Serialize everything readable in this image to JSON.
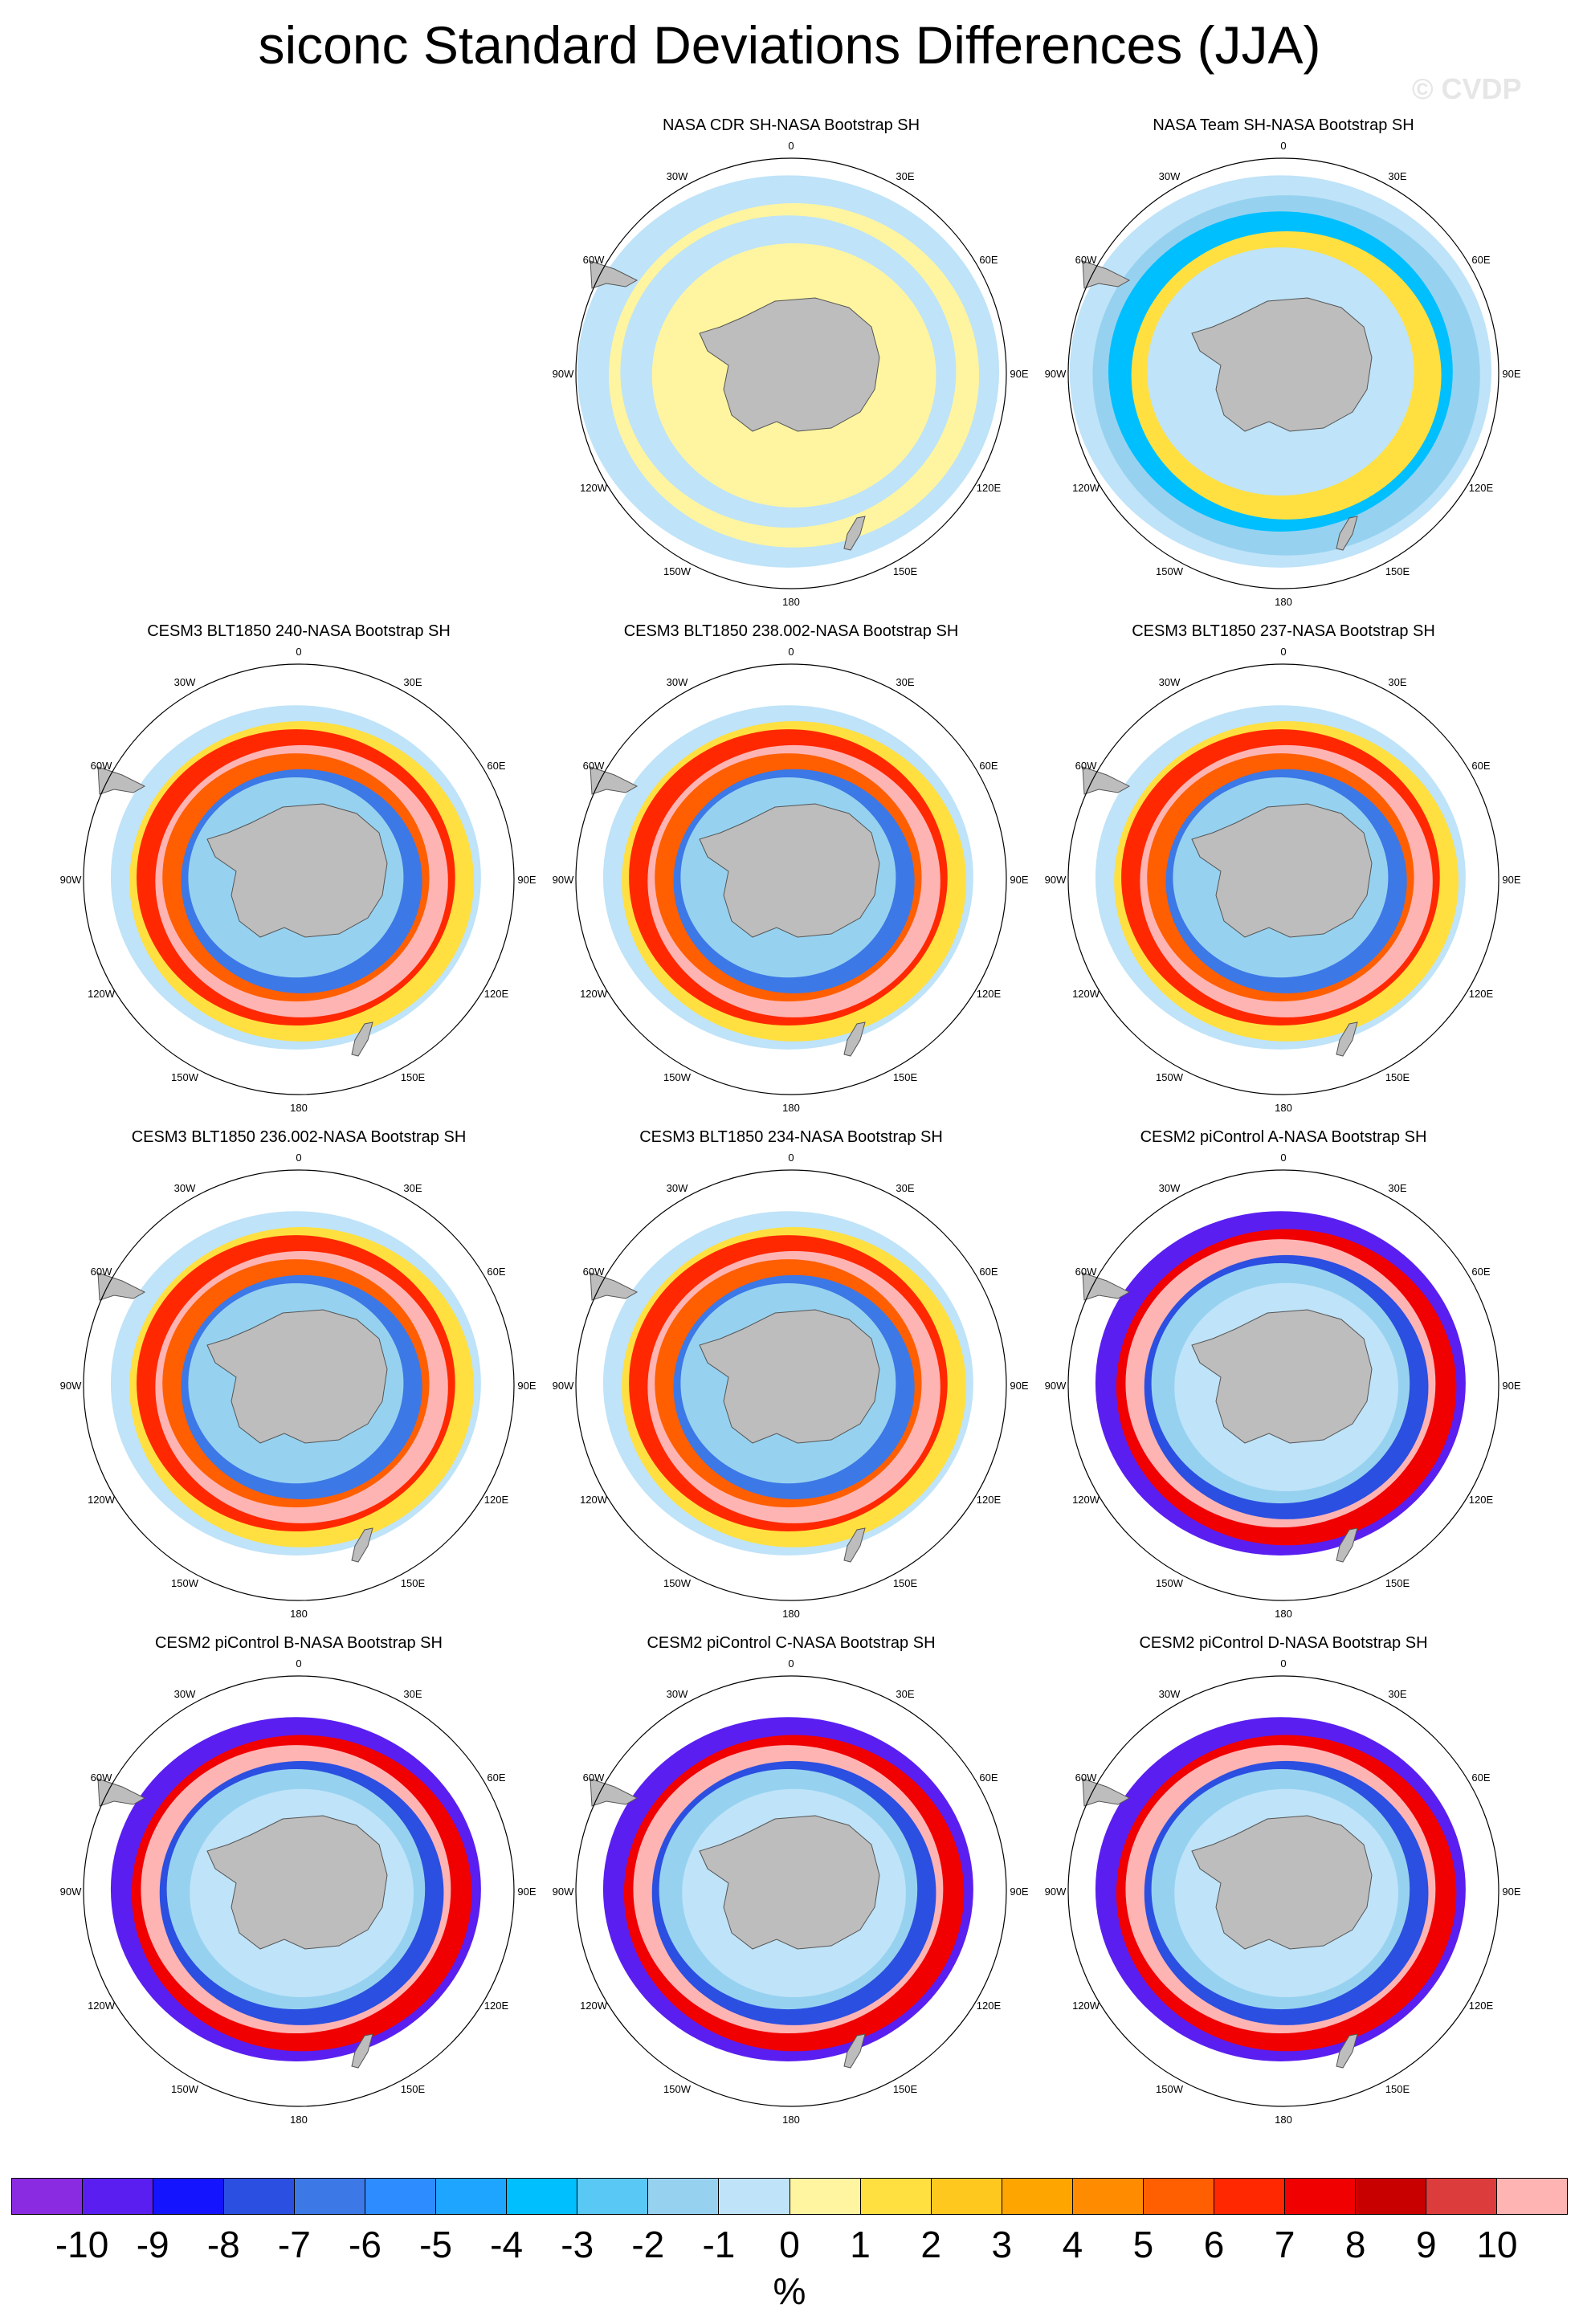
{
  "title": "siconc Standard Deviations Differences (JJA)",
  "watermark": "© CVDP",
  "lon_labels": [
    "0",
    "30E",
    "60E",
    "90E",
    "120E",
    "150E",
    "180",
    "150W",
    "120W",
    "90W",
    "60W",
    "30W"
  ],
  "panels": [
    {
      "title": "NASA CDR SH-NASA Bootstrap SH",
      "pattern": "obs_cdr"
    },
    {
      "title": "NASA Team SH-NASA Bootstrap SH",
      "pattern": "obs_team"
    },
    {
      "title": "CESM3 BLT1850 240-NASA Bootstrap SH",
      "pattern": "cesm3"
    },
    {
      "title": "CESM3 BLT1850 238.002-NASA Bootstrap SH",
      "pattern": "cesm3"
    },
    {
      "title": "CESM3 BLT1850 237-NASA Bootstrap SH",
      "pattern": "cesm3"
    },
    {
      "title": "CESM3 BLT1850 236.002-NASA Bootstrap SH",
      "pattern": "cesm3"
    },
    {
      "title": "CESM3 BLT1850 234-NASA Bootstrap SH",
      "pattern": "cesm3"
    },
    {
      "title": "CESM2 piControl A-NASA Bootstrap SH",
      "pattern": "cesm2"
    },
    {
      "title": "CESM2 piControl B-NASA Bootstrap SH",
      "pattern": "cesm2"
    },
    {
      "title": "CESM2 piControl C-NASA Bootstrap SH",
      "pattern": "cesm2"
    },
    {
      "title": "CESM2 piControl D-NASA Bootstrap SH",
      "pattern": "cesm2"
    }
  ],
  "colorbar": {
    "colors": [
      "#8a2be2",
      "#5a1ff0",
      "#1414ff",
      "#2b4fe0",
      "#3c78e6",
      "#2d8cff",
      "#1ea5ff",
      "#00bfff",
      "#5ac8f5",
      "#96d2f0",
      "#bfe3f8",
      "#fff5a0",
      "#ffe040",
      "#ffc81e",
      "#ffa500",
      "#ff8c00",
      "#ff5f00",
      "#ff2800",
      "#f00000",
      "#c80000",
      "#dc3c3c",
      "#ffb4b4"
    ],
    "ticks": [
      "-10",
      "-9",
      "-8",
      "-7",
      "-6",
      "-5",
      "-4",
      "-3",
      "-2",
      "-1",
      "0",
      "1",
      "2",
      "3",
      "4",
      "5",
      "6",
      "7",
      "8",
      "9",
      "10"
    ],
    "units": "%"
  }
}
